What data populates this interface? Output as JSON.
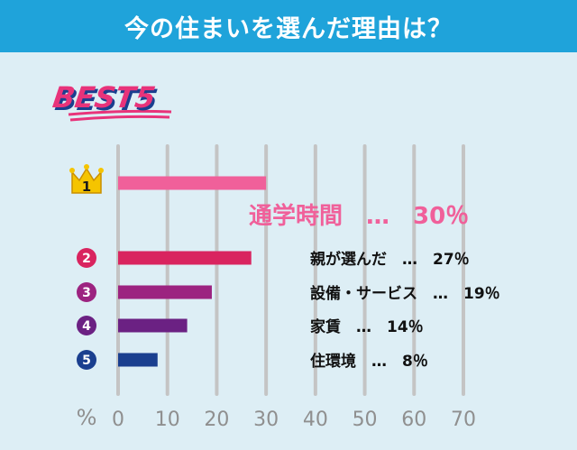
{
  "header": {
    "title": "今の住まいを選んだ理由は？"
  },
  "badge": {
    "text": "BEST5"
  },
  "chart_data": {
    "type": "bar",
    "orientation": "horizontal",
    "title": "今の住まいを選んだ理由は？",
    "xlabel": "%",
    "xlim": [
      0,
      70
    ],
    "xticks": [
      "0",
      "10",
      "20",
      "30",
      "40",
      "50",
      "60",
      "70"
    ],
    "grid": true,
    "categories": [
      "通学時間",
      "親が選んだ",
      "設備・サービス",
      "家賃",
      "住環境"
    ],
    "values": [
      30,
      27,
      19,
      14,
      8
    ],
    "ranks": [
      "1",
      "2",
      "3",
      "4",
      "5"
    ],
    "labels": [
      "通学時間　…　30％",
      "親が選んだ　…　27％",
      "設備・サービス　…　19％",
      "家賃　…　14％",
      "住環境　…　8％"
    ],
    "colors": [
      "#f0609a",
      "#d9245f",
      "#9c2380",
      "#6b2183",
      "#1a3f8f"
    ]
  },
  "colors": {
    "header_bg": "#1fa3da",
    "panel_bg": "#ddeef5",
    "grid": "#c4c4c4",
    "axis_text": "#8f8f8f",
    "crown": "#f5c400",
    "badge_text": "#e8337a",
    "badge_shadow": "#1a3f8f"
  }
}
